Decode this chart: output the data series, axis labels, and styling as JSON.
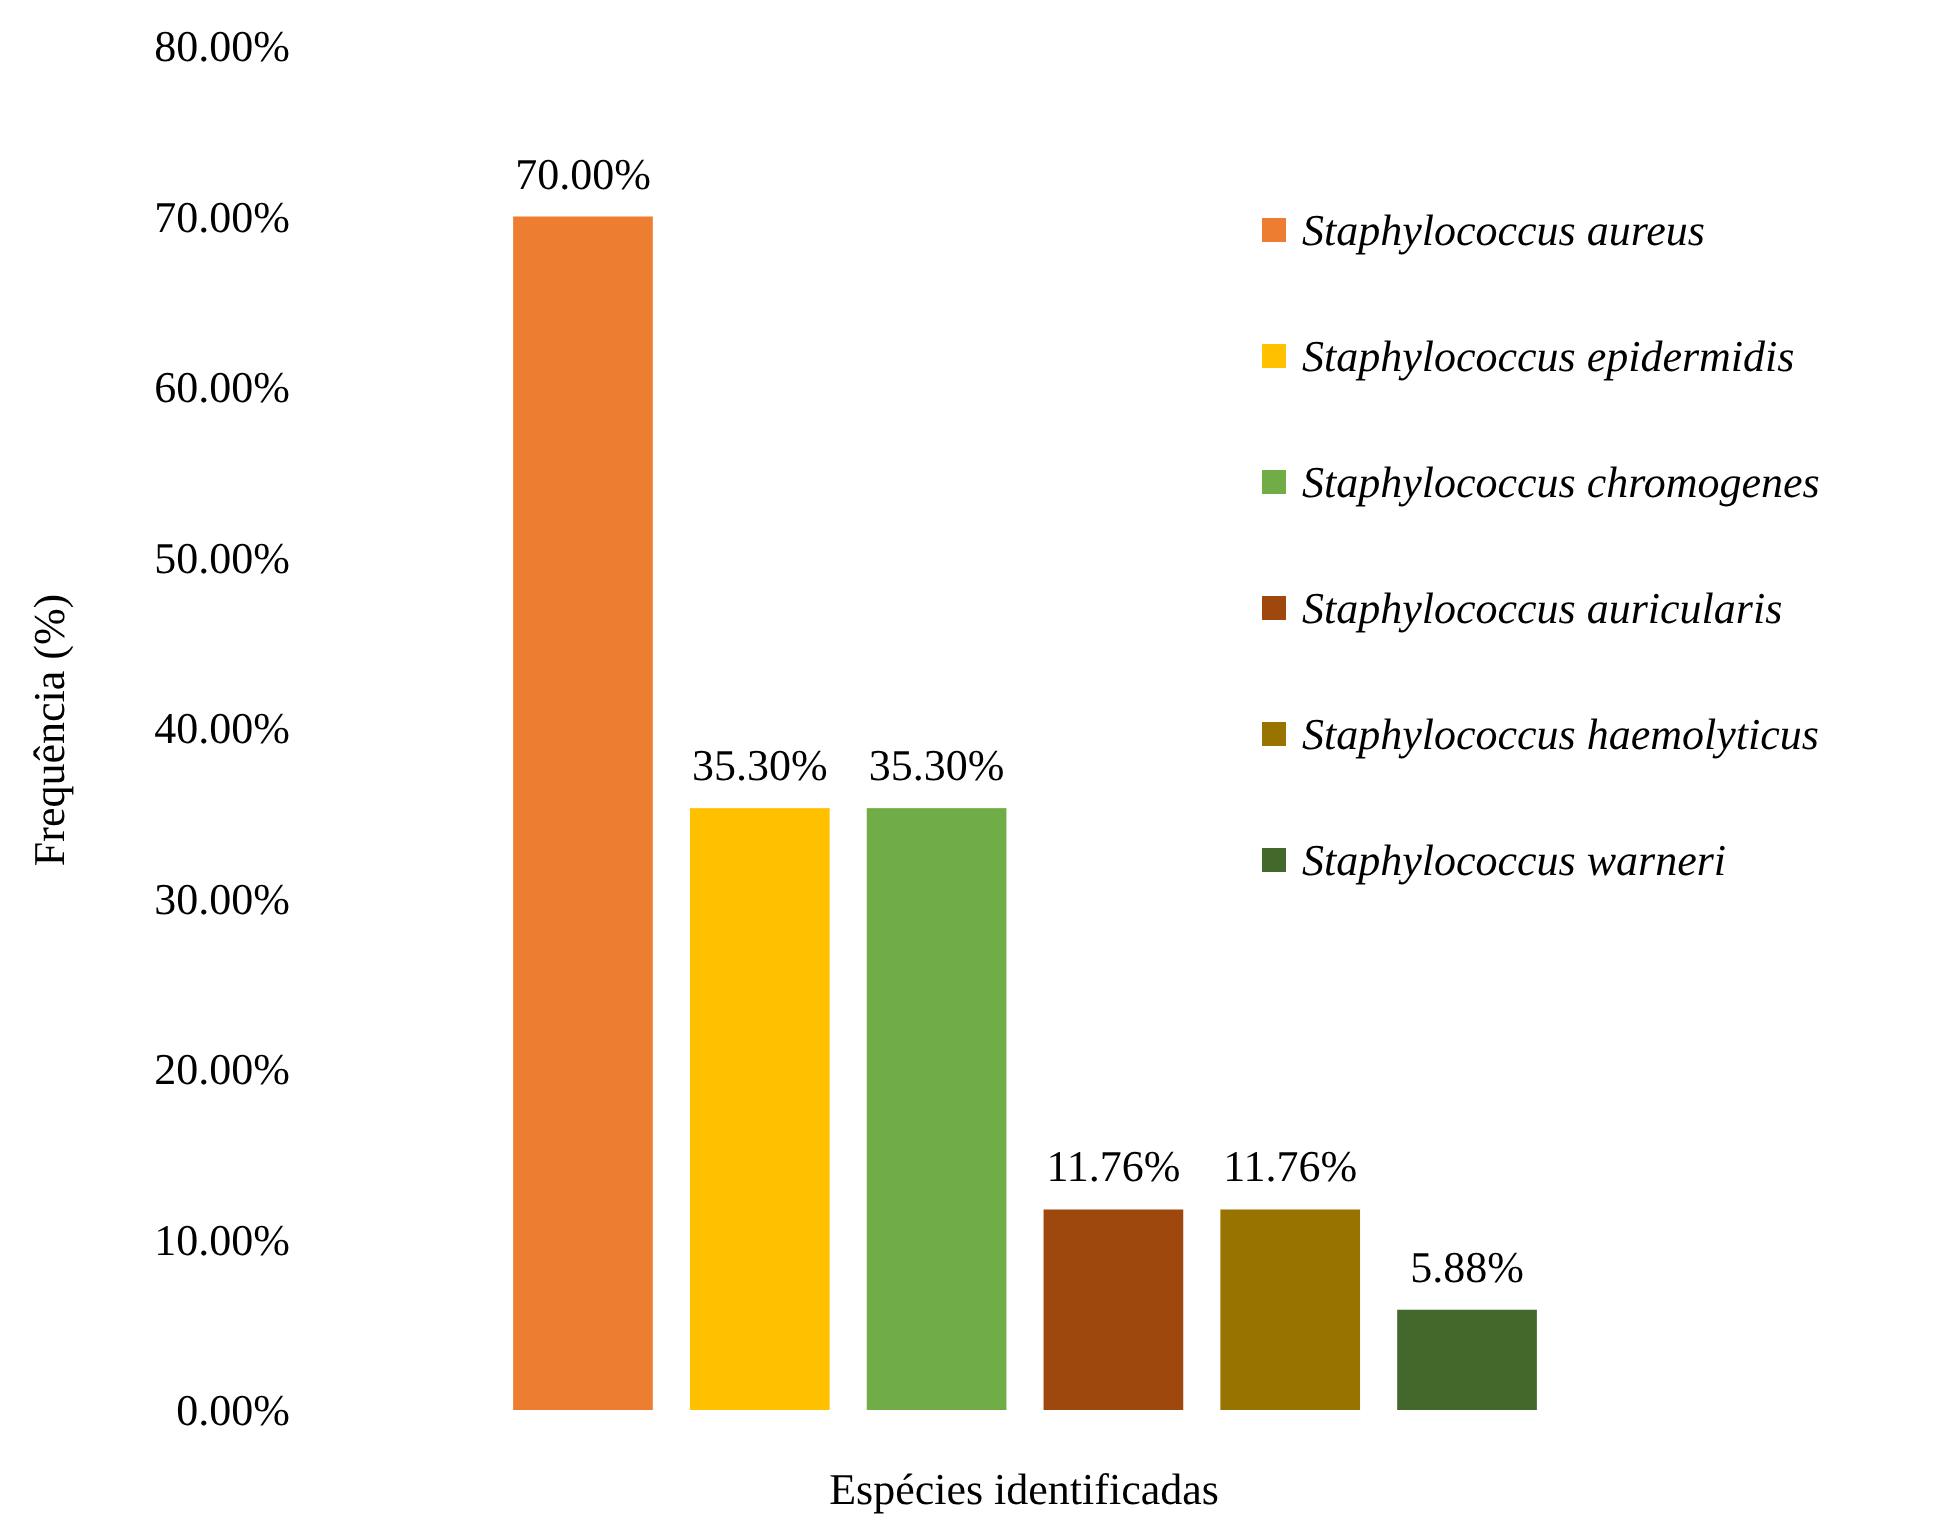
{
  "chart_data": {
    "type": "bar",
    "xlabel": "Espécies identificadas",
    "ylabel": "Frequência (%)",
    "categories": [
      null,
      null,
      null,
      null,
      null,
      null
    ],
    "stacked": true,
    "legend": "right",
    "ylim": [
      0,
      80
    ],
    "yticks": [
      {
        "value": 0,
        "label": "0.00%"
      },
      {
        "value": 10,
        "label": "10.00%"
      },
      {
        "value": 20,
        "label": "20.00%"
      },
      {
        "value": 30,
        "label": "30.00%"
      },
      {
        "value": 40,
        "label": "40.00%"
      },
      {
        "value": 50,
        "label": "50.00%"
      },
      {
        "value": 60,
        "label": "60.00%"
      },
      {
        "value": 70,
        "label": "70.00%"
      },
      {
        "value": 80,
        "label": "80.00%"
      }
    ],
    "series": [
      {
        "name": "Staphylococcus aureus",
        "color": "#ed7d31",
        "values": [
          70,
          null,
          null,
          null,
          null,
          null
        ],
        "value_labels": [
          "70.00%",
          null,
          null,
          null,
          null,
          null
        ]
      },
      {
        "name": "Staphylococcus epidermidis",
        "color": "#ffc000",
        "values": [
          null,
          35.3,
          null,
          null,
          null,
          null
        ],
        "value_labels": [
          null,
          "35.30%",
          null,
          null,
          null,
          null
        ]
      },
      {
        "name": "Staphylococcus chromogenes",
        "color": "#70ad47",
        "values": [
          null,
          null,
          35.3,
          null,
          null,
          null
        ],
        "value_labels": [
          null,
          null,
          "35.30%",
          null,
          null,
          null
        ]
      },
      {
        "name": "Staphylococcus auricularis",
        "color": "#9e480e",
        "values": [
          null,
          null,
          null,
          11.76,
          null,
          null
        ],
        "value_labels": [
          null,
          null,
          null,
          "11.76%",
          null,
          null
        ]
      },
      {
        "name": "Staphylococcus haemolyticus",
        "color": "#997300",
        "values": [
          null,
          null,
          null,
          null,
          11.76,
          null
        ],
        "value_labels": [
          null,
          null,
          null,
          null,
          "11.76%",
          null
        ]
      },
      {
        "name": "Staphylococcus warneri",
        "color": "#43682b",
        "values": [
          null,
          null,
          null,
          null,
          null,
          5.88
        ],
        "value_labels": [
          null,
          null,
          null,
          null,
          null,
          "5.88%"
        ]
      }
    ]
  }
}
